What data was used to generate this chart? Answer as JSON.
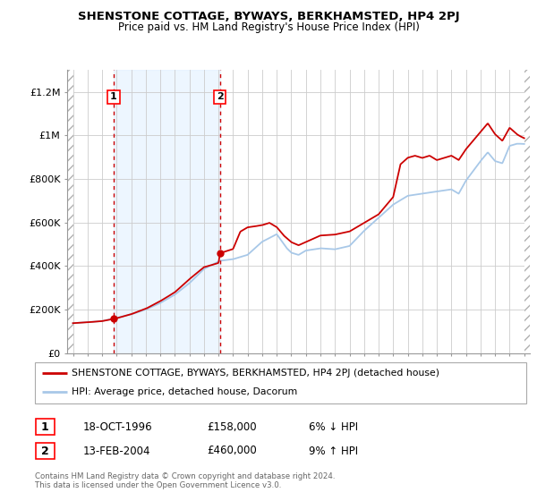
{
  "title": "SHENSTONE COTTAGE, BYWAYS, BERKHAMSTED, HP4 2PJ",
  "subtitle": "Price paid vs. HM Land Registry's House Price Index (HPI)",
  "sale1_date": 1996.8,
  "sale1_price": 158000,
  "sale2_date": 2004.1,
  "sale2_price": 460000,
  "hpi_color": "#a8c8e8",
  "price_color": "#cc0000",
  "dashed_color": "#cc0000",
  "xlim_left": 1993.6,
  "xlim_right": 2025.4,
  "ylim_bottom": 0,
  "ylim_top": 1300000,
  "legend_line1": "SHENSTONE COTTAGE, BYWAYS, BERKHAMSTED, HP4 2PJ (detached house)",
  "legend_line2": "HPI: Average price, detached house, Dacorum",
  "table_row1": [
    "1",
    "18-OCT-1996",
    "£158,000",
    "6% ↓ HPI"
  ],
  "table_row2": [
    "2",
    "13-FEB-2004",
    "£460,000",
    "9% ↑ HPI"
  ],
  "footer": "Contains HM Land Registry data © Crown copyright and database right 2024.\nThis data is licensed under the Open Government Licence v3.0.",
  "yticks": [
    0,
    200000,
    400000,
    600000,
    800000,
    1000000,
    1200000
  ],
  "ytick_labels": [
    "£0",
    "£200K",
    "£400K",
    "£600K",
    "£800K",
    "£1M",
    "£1.2M"
  ]
}
